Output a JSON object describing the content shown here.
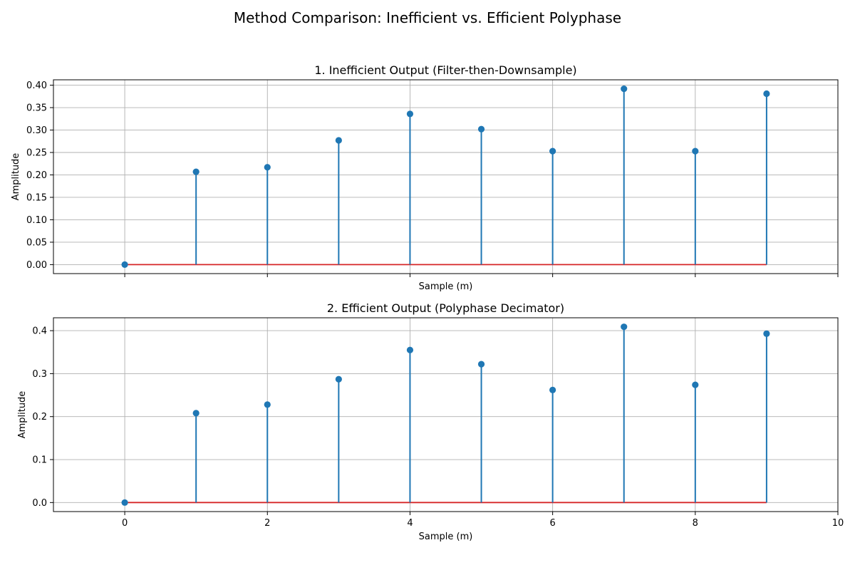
{
  "suptitle": "Method Comparison: Inefficient vs. Efficient Polyphase",
  "colors": {
    "stem": "#1f77b4",
    "baseline": "#d62728",
    "grid": "#b0b0b0"
  },
  "chart_data": [
    {
      "type": "stem",
      "title": "1. Inefficient Output (Filter-then-Downsample)",
      "xlabel": "Sample (m)",
      "ylabel": "Amplitude",
      "grid": true,
      "xlim": [
        -1,
        10
      ],
      "ylim": [
        -0.02,
        0.412
      ],
      "x_ticks": [
        0,
        2,
        4,
        6,
        8,
        10
      ],
      "x_tick_labels_visible": false,
      "y_ticks": [
        0.0,
        0.05,
        0.1,
        0.15,
        0.2,
        0.25,
        0.3,
        0.35,
        0.4
      ],
      "y_tick_labels": [
        "0.00",
        "0.05",
        "0.10",
        "0.15",
        "0.20",
        "0.25",
        "0.30",
        "0.35",
        "0.40"
      ],
      "x": [
        0,
        1,
        2,
        3,
        4,
        5,
        6,
        7,
        8,
        9
      ],
      "values": [
        0.0,
        0.207,
        0.217,
        0.277,
        0.336,
        0.302,
        0.253,
        0.392,
        0.253,
        0.381
      ],
      "baseline": 0.0
    },
    {
      "type": "stem",
      "title": "2. Efficient Output (Polyphase Decimator)",
      "xlabel": "Sample (m)",
      "ylabel": "Amplitude",
      "grid": true,
      "xlim": [
        -1,
        10
      ],
      "ylim": [
        -0.021,
        0.43
      ],
      "x_ticks": [
        0,
        2,
        4,
        6,
        8,
        10
      ],
      "x_tick_labels": [
        "0",
        "2",
        "4",
        "6",
        "8",
        "10"
      ],
      "x_tick_labels_visible": true,
      "y_ticks": [
        0.0,
        0.1,
        0.2,
        0.3,
        0.4
      ],
      "y_tick_labels": [
        "0.0",
        "0.1",
        "0.2",
        "0.3",
        "0.4"
      ],
      "x": [
        0,
        1,
        2,
        3,
        4,
        5,
        6,
        7,
        8,
        9
      ],
      "values": [
        0.0,
        0.208,
        0.228,
        0.287,
        0.355,
        0.322,
        0.262,
        0.409,
        0.274,
        0.393
      ],
      "baseline": 0.0
    }
  ]
}
